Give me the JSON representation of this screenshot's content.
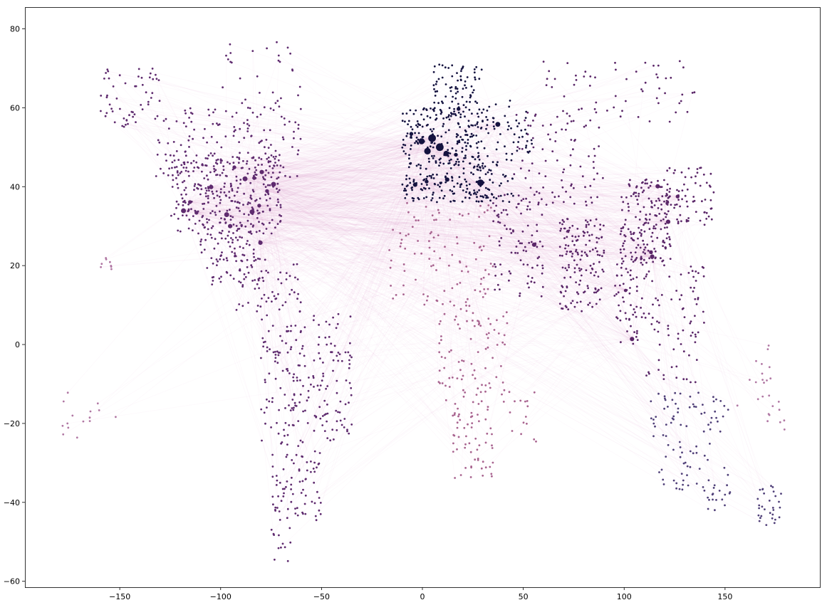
{
  "chart_data": {
    "type": "scatter",
    "title": "",
    "xlabel": "",
    "ylabel": "",
    "xlim": [
      -197,
      197
    ],
    "ylim": [
      -61.5,
      85.5
    ],
    "grid": false,
    "x_ticks": [
      -150,
      -100,
      -50,
      0,
      50,
      100,
      150
    ],
    "y_ticks": [
      -60,
      -40,
      -20,
      0,
      20,
      40,
      60,
      80
    ],
    "x_tick_labels": [
      "−150",
      "−100",
      "−50",
      "0",
      "50",
      "100",
      "150"
    ],
    "y_tick_labels": [
      "−60",
      "−40",
      "−20",
      "0",
      "20",
      "40",
      "60",
      "80"
    ],
    "colors": {
      "europe": "#14123f",
      "americas": "#5e2a6e",
      "asia": "#5a2668",
      "africa": "#a8638f",
      "oceania": "#4f3f78",
      "pacific": "#b077a3",
      "route": "#e7a6d8"
    },
    "hubs": [
      {
        "region": "europe",
        "x": 4.8,
        "y": 52.3,
        "size": 7
      },
      {
        "region": "europe",
        "x": 8.6,
        "y": 50.0,
        "size": 7
      },
      {
        "region": "europe",
        "x": 2.5,
        "y": 49.0,
        "size": 6
      },
      {
        "region": "europe",
        "x": -0.4,
        "y": 51.5,
        "size": 5.5
      },
      {
        "region": "europe",
        "x": 28.8,
        "y": 41.0,
        "size": 6
      },
      {
        "region": "europe",
        "x": 11.8,
        "y": 48.4,
        "size": 5
      },
      {
        "region": "europe",
        "x": 37.4,
        "y": 55.8,
        "size": 4.5
      },
      {
        "region": "europe",
        "x": -3.6,
        "y": 40.5,
        "size": 4
      },
      {
        "region": "europe",
        "x": 12.3,
        "y": 41.8,
        "size": 4
      },
      {
        "region": "europe",
        "x": 17.9,
        "y": 59.7,
        "size": 3.5
      },
      {
        "region": "europe",
        "x": 2.1,
        "y": 41.3,
        "size": 3.5
      },
      {
        "region": "europe",
        "x": -5.5,
        "y": 53.4,
        "size": 3.5
      },
      {
        "region": "europe",
        "x": 16.6,
        "y": 48.1,
        "size": 3.5
      },
      {
        "region": "americas",
        "x": -84.4,
        "y": 33.6,
        "size": 4.5
      },
      {
        "region": "americas",
        "x": -87.9,
        "y": 42.0,
        "size": 4.5
      },
      {
        "region": "americas",
        "x": -73.8,
        "y": 40.6,
        "size": 4.5
      },
      {
        "region": "americas",
        "x": -97.0,
        "y": 32.9,
        "size": 4.5
      },
      {
        "region": "americas",
        "x": -118.4,
        "y": 33.9,
        "size": 4.5
      },
      {
        "region": "americas",
        "x": -104.7,
        "y": 39.9,
        "size": 4
      },
      {
        "region": "americas",
        "x": -80.3,
        "y": 25.8,
        "size": 4
      },
      {
        "region": "americas",
        "x": -95.3,
        "y": 30.0,
        "size": 4
      },
      {
        "region": "americas",
        "x": -79.6,
        "y": 43.7,
        "size": 4
      },
      {
        "region": "americas",
        "x": -77.0,
        "y": 38.9,
        "size": 3.5
      },
      {
        "region": "americas",
        "x": -93.2,
        "y": 44.9,
        "size": 3.5
      },
      {
        "region": "americas",
        "x": -83.4,
        "y": 42.2,
        "size": 3.5
      },
      {
        "region": "americas",
        "x": -80.9,
        "y": 35.2,
        "size": 3.5
      },
      {
        "region": "americas",
        "x": -115.2,
        "y": 36.1,
        "size": 3.5
      },
      {
        "region": "americas",
        "x": -112.0,
        "y": 33.4,
        "size": 3.5
      },
      {
        "region": "asia",
        "x": 55.4,
        "y": 25.3,
        "size": 4
      },
      {
        "region": "asia",
        "x": 116.6,
        "y": 40.1,
        "size": 4
      },
      {
        "region": "asia",
        "x": 121.8,
        "y": 31.1,
        "size": 4
      },
      {
        "region": "asia",
        "x": 113.9,
        "y": 22.3,
        "size": 4
      },
      {
        "region": "asia",
        "x": 113.3,
        "y": 23.4,
        "size": 3.5
      },
      {
        "region": "asia",
        "x": 103.9,
        "y": 1.4,
        "size": 4
      },
      {
        "region": "asia",
        "x": 126.5,
        "y": 37.5,
        "size": 3.5
      },
      {
        "region": "asia",
        "x": 100.7,
        "y": 13.7,
        "size": 3
      }
    ],
    "airport_clusters": [
      {
        "region": "americas",
        "lon": [
          -160,
          -130
        ],
        "lat": [
          55,
          70
        ],
        "count": 55
      },
      {
        "region": "americas",
        "lon": [
          -135,
          -60
        ],
        "lat": [
          42,
          60
        ],
        "count": 150
      },
      {
        "region": "americas",
        "lon": [
          -125,
          -70
        ],
        "lat": [
          28,
          48
        ],
        "count": 300
      },
      {
        "region": "americas",
        "lon": [
          -110,
          -80
        ],
        "lat": [
          15,
          30
        ],
        "count": 90
      },
      {
        "region": "americas",
        "lon": [
          -95,
          -60
        ],
        "lat": [
          8,
          22
        ],
        "count": 60
      },
      {
        "region": "americas",
        "lon": [
          -80,
          -35
        ],
        "lat": [
          -25,
          8
        ],
        "count": 170
      },
      {
        "region": "americas",
        "lon": [
          -75,
          -50
        ],
        "lat": [
          -45,
          -25
        ],
        "count": 80
      },
      {
        "region": "americas",
        "lon": [
          -75,
          -65
        ],
        "lat": [
          -55,
          -45
        ],
        "count": 12
      },
      {
        "region": "americas",
        "lon": [
          -100,
          -60
        ],
        "lat": [
          60,
          77
        ],
        "count": 30
      },
      {
        "region": "americas",
        "lon": [
          -75,
          -60
        ],
        "lat": [
          -20,
          5
        ],
        "count": 30
      },
      {
        "region": "europe",
        "lon": [
          -10,
          30
        ],
        "lat": [
          36,
          60
        ],
        "count": 330
      },
      {
        "region": "europe",
        "lon": [
          5,
          30
        ],
        "lat": [
          60,
          71
        ],
        "count": 70
      },
      {
        "region": "europe",
        "lon": [
          25,
          45
        ],
        "lat": [
          36,
          48
        ],
        "count": 60
      },
      {
        "region": "europe",
        "lon": [
          30,
          55
        ],
        "lat": [
          48,
          62
        ],
        "count": 50
      },
      {
        "region": "asia",
        "lon": [
          45,
          90
        ],
        "lat": [
          35,
          60
        ],
        "count": 90
      },
      {
        "region": "asia",
        "lon": [
          60,
          135
        ],
        "lat": [
          55,
          72
        ],
        "count": 60
      },
      {
        "region": "asia",
        "lon": [
          35,
          60
        ],
        "lat": [
          12,
          38
        ],
        "count": 90
      },
      {
        "region": "asia",
        "lon": [
          68,
          90
        ],
        "lat": [
          8,
          32
        ],
        "count": 150
      },
      {
        "region": "asia",
        "lon": [
          98,
          123
        ],
        "lat": [
          20,
          42
        ],
        "count": 180
      },
      {
        "region": "asia",
        "lon": [
          120,
          145
        ],
        "lat": [
          30,
          45
        ],
        "count": 70
      },
      {
        "region": "asia",
        "lon": [
          95,
          110
        ],
        "lat": [
          0,
          22
        ],
        "count": 60
      },
      {
        "region": "asia",
        "lon": [
          110,
          140
        ],
        "lat": [
          -10,
          20
        ],
        "count": 80
      },
      {
        "region": "africa",
        "lon": [
          -17,
          35
        ],
        "lat": [
          10,
          36
        ],
        "count": 100
      },
      {
        "region": "africa",
        "lon": [
          8,
          42
        ],
        "lat": [
          -15,
          10
        ],
        "count": 90
      },
      {
        "region": "africa",
        "lon": [
          15,
          35
        ],
        "lat": [
          -34,
          -15
        ],
        "count": 60
      },
      {
        "region": "africa",
        "lon": [
          43,
          58
        ],
        "lat": [
          -25,
          -12
        ],
        "count": 15
      },
      {
        "region": "oceania",
        "lon": [
          113,
          153
        ],
        "lat": [
          -38,
          -12
        ],
        "count": 100
      },
      {
        "region": "oceania",
        "lon": [
          140,
          152
        ],
        "lat": [
          -43,
          -38
        ],
        "count": 10
      },
      {
        "region": "oceania",
        "lon": [
          166,
          178
        ],
        "lat": [
          -46,
          -35
        ],
        "count": 30
      },
      {
        "region": "pacific",
        "lon": [
          155,
          180
        ],
        "lat": [
          -22,
          0
        ],
        "count": 25
      },
      {
        "region": "pacific",
        "lon": [
          -180,
          -150
        ],
        "lat": [
          -24,
          -12
        ],
        "count": 15
      },
      {
        "region": "pacific",
        "lon": [
          -160,
          -154
        ],
        "lat": [
          19,
          22
        ],
        "count": 8
      }
    ],
    "route_density": 1800
  }
}
